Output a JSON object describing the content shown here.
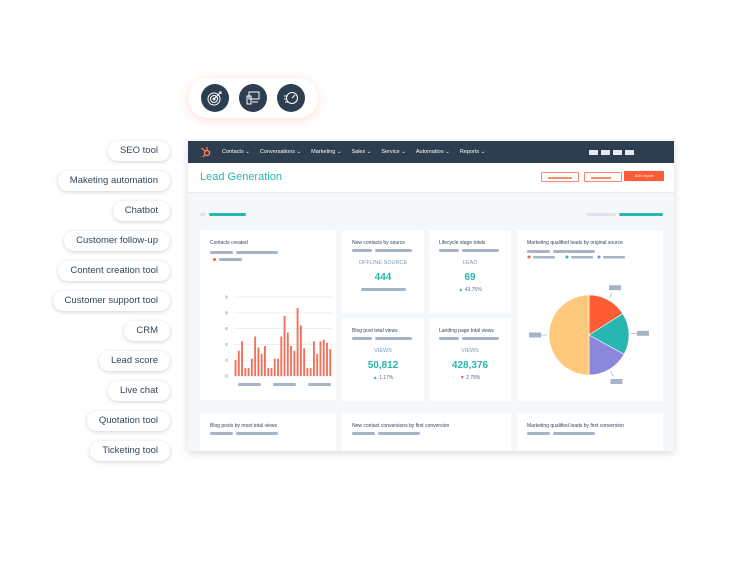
{
  "features": [
    "SEO tool",
    "Maketing automation",
    "Chatbot",
    "Customer follow-up",
    "Content creation tool",
    "Customer support tool",
    "CRM",
    "Lead score",
    "Live chat",
    "Quotation tool",
    "Ticketing tool"
  ],
  "icon_badges": [
    "target-icon",
    "devices-icon",
    "speedometer-icon"
  ],
  "nav": {
    "items": [
      "Contacts",
      "Conversations",
      "Marketing",
      "Sales",
      "Service",
      "Automation",
      "Reports"
    ]
  },
  "header": {
    "title": "Lead Generation",
    "add_report": "Add report"
  },
  "colors": {
    "accent": "#27b6b0",
    "orange": "#ff5c35",
    "navy": "#2d3e50"
  },
  "cards": {
    "contacts_created": {
      "title": "Contacts created"
    },
    "new_contacts": {
      "title": "New contacts by source",
      "label": "OFFLINE SOURCE",
      "value": "444"
    },
    "lifecycle": {
      "title": "Lifecycle stage totals",
      "label": "LEAD",
      "value": "69",
      "change": "43.75%",
      "trend": "up"
    },
    "blog_views": {
      "title": "Blog post total views",
      "label": "VIEWS",
      "value": "50,812",
      "change": "1.17%",
      "trend": "up"
    },
    "landing_views": {
      "title": "Landing page total views",
      "label": "VIEWS",
      "value": "428,376",
      "change": "2.78%",
      "trend": "down"
    },
    "mql_source": {
      "title": "Marketing qualified leads by original source"
    },
    "blog_most": {
      "title": "Blog posts by most total views"
    },
    "new_conv": {
      "title": "New contact conversions by first conversion"
    },
    "mql_first": {
      "title": "Marketing qualified leads by first conversion"
    }
  },
  "chart_data": [
    {
      "type": "bar",
      "title": "Contacts created",
      "ylim": [
        0,
        5
      ],
      "grid": true,
      "color": "#f2705a",
      "values": [
        1.0,
        1.6,
        2.2,
        0.5,
        0.5,
        1.1,
        2.5,
        1.8,
        1.4,
        1.9,
        0.5,
        0.5,
        1.1,
        1.1,
        2.5,
        3.8,
        2.75,
        1.9,
        1.6,
        4.3,
        3.2,
        1.75,
        0.5,
        0.5,
        2.2,
        1.4,
        2.2,
        2.3,
        2.1,
        1.7
      ]
    },
    {
      "type": "pie",
      "title": "Marketing qualified leads by original source",
      "values": [
        16,
        17,
        17,
        50
      ],
      "colors": [
        "#ff5c35",
        "#27b6b0",
        "#8b87dc",
        "#ffc97c"
      ]
    }
  ]
}
